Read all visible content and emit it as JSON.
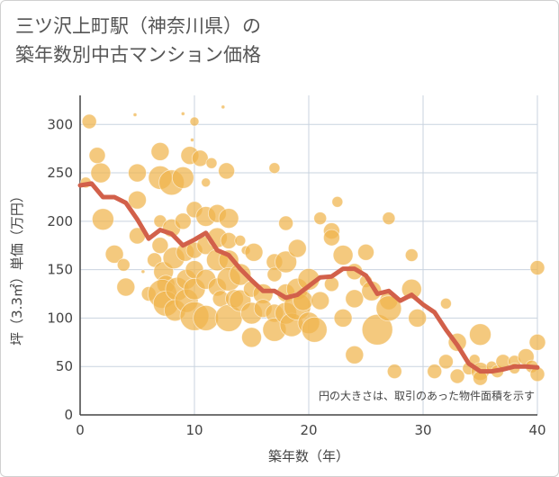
{
  "title_line1": "三ツ沢上町駅（神奈川県）の",
  "title_line2": "築年数別中古マンション価格",
  "note": "円の大きさは、取引のあった物件面積を示す",
  "colors": {
    "bubble": "#f0b44c",
    "line": "#d2604a",
    "grid": "#c9d3df",
    "axis": "#444444"
  },
  "chart_data": {
    "type": "scatter",
    "xlabel": "築年数（年）",
    "ylabel": "坪（3.3㎡）単価（万円）",
    "xlim": [
      0,
      40
    ],
    "ylim": [
      0,
      330
    ],
    "xticks": [
      0,
      10,
      20,
      30,
      40
    ],
    "yticks": [
      0,
      50,
      100,
      150,
      200,
      250,
      300
    ],
    "line": {
      "x": [
        0,
        1,
        2,
        3,
        4,
        5,
        6,
        7,
        8,
        9,
        10,
        11,
        12,
        13,
        14,
        15,
        16,
        17,
        18,
        19,
        20,
        21,
        22,
        23,
        24,
        25,
        26,
        27,
        28,
        29,
        30,
        31,
        32,
        33,
        34,
        35,
        36,
        37,
        38,
        39,
        40
      ],
      "y": [
        237,
        239,
        225,
        225,
        219,
        202,
        182,
        191,
        187,
        175,
        181,
        188,
        170,
        165,
        151,
        139,
        128,
        128,
        121,
        124,
        133,
        142,
        143,
        151,
        151,
        144,
        125,
        128,
        118,
        124,
        114,
        106,
        88,
        72,
        53,
        45,
        45,
        47,
        50,
        50,
        49
      ]
    },
    "bubbles": [
      {
        "x": 0.8,
        "y": 303,
        "r": 8
      },
      {
        "x": 1.5,
        "y": 268,
        "r": 9
      },
      {
        "x": 1.8,
        "y": 250,
        "r": 11
      },
      {
        "x": 0.5,
        "y": 240,
        "r": 6
      },
      {
        "x": 2,
        "y": 202,
        "r": 12
      },
      {
        "x": 3,
        "y": 166,
        "r": 10
      },
      {
        "x": 3.8,
        "y": 155,
        "r": 7
      },
      {
        "x": 4,
        "y": 132,
        "r": 10
      },
      {
        "x": 5,
        "y": 250,
        "r": 10
      },
      {
        "x": 5,
        "y": 222,
        "r": 10
      },
      {
        "x": 5,
        "y": 185,
        "r": 9
      },
      {
        "x": 4.8,
        "y": 310,
        "r": 2
      },
      {
        "x": 5.5,
        "y": 148,
        "r": 2
      },
      {
        "x": 6,
        "y": 125,
        "r": 8
      },
      {
        "x": 6.5,
        "y": 160,
        "r": 8
      },
      {
        "x": 7,
        "y": 272,
        "r": 10
      },
      {
        "x": 7,
        "y": 245,
        "r": 13
      },
      {
        "x": 7,
        "y": 200,
        "r": 7
      },
      {
        "x": 7,
        "y": 175,
        "r": 9
      },
      {
        "x": 7.3,
        "y": 148,
        "r": 11
      },
      {
        "x": 7.5,
        "y": 135,
        "r": 10
      },
      {
        "x": 7.2,
        "y": 125,
        "r": 16
      },
      {
        "x": 7.5,
        "y": 115,
        "r": 14
      },
      {
        "x": 8,
        "y": 240,
        "r": 14
      },
      {
        "x": 8,
        "y": 193,
        "r": 10
      },
      {
        "x": 8.2,
        "y": 162,
        "r": 12
      },
      {
        "x": 8.5,
        "y": 130,
        "r": 13
      },
      {
        "x": 8.3,
        "y": 108,
        "r": 12
      },
      {
        "x": 9,
        "y": 245,
        "r": 12
      },
      {
        "x": 9,
        "y": 200,
        "r": 9
      },
      {
        "x": 9.2,
        "y": 168,
        "r": 10
      },
      {
        "x": 9.3,
        "y": 140,
        "r": 11
      },
      {
        "x": 9.3,
        "y": 118,
        "r": 13
      },
      {
        "x": 9,
        "y": 311,
        "r": 2
      },
      {
        "x": 9.6,
        "y": 268,
        "r": 10
      },
      {
        "x": 9.8,
        "y": 284,
        "r": 2
      },
      {
        "x": 10,
        "y": 303,
        "r": 5
      },
      {
        "x": 10,
        "y": 212,
        "r": 9
      },
      {
        "x": 10,
        "y": 170,
        "r": 9
      },
      {
        "x": 10,
        "y": 150,
        "r": 10
      },
      {
        "x": 10,
        "y": 130,
        "r": 12
      },
      {
        "x": 10,
        "y": 102,
        "r": 16
      },
      {
        "x": 10.5,
        "y": 265,
        "r": 9
      },
      {
        "x": 11,
        "y": 240,
        "r": 5
      },
      {
        "x": 11,
        "y": 205,
        "r": 11
      },
      {
        "x": 11,
        "y": 175,
        "r": 10
      },
      {
        "x": 11,
        "y": 140,
        "r": 11
      },
      {
        "x": 11,
        "y": 100,
        "r": 14
      },
      {
        "x": 11.5,
        "y": 260,
        "r": 6
      },
      {
        "x": 12,
        "y": 208,
        "r": 10
      },
      {
        "x": 12,
        "y": 183,
        "r": 11
      },
      {
        "x": 12,
        "y": 160,
        "r": 12
      },
      {
        "x": 12,
        "y": 132,
        "r": 10
      },
      {
        "x": 12.3,
        "y": 120,
        "r": 9
      },
      {
        "x": 12.5,
        "y": 318,
        "r": 2
      },
      {
        "x": 12.8,
        "y": 252,
        "r": 9
      },
      {
        "x": 13,
        "y": 203,
        "r": 11
      },
      {
        "x": 13,
        "y": 180,
        "r": 9
      },
      {
        "x": 13,
        "y": 160,
        "r": 11
      },
      {
        "x": 13,
        "y": 140,
        "r": 13
      },
      {
        "x": 13,
        "y": 100,
        "r": 15
      },
      {
        "x": 13.5,
        "y": 120,
        "r": 10
      },
      {
        "x": 14,
        "y": 180,
        "r": 6
      },
      {
        "x": 14,
        "y": 145,
        "r": 12
      },
      {
        "x": 14,
        "y": 118,
        "r": 12
      },
      {
        "x": 14.5,
        "y": 170,
        "r": 5
      },
      {
        "x": 15,
        "y": 130,
        "r": 9
      },
      {
        "x": 15,
        "y": 105,
        "r": 12
      },
      {
        "x": 15,
        "y": 80,
        "r": 11
      },
      {
        "x": 15.2,
        "y": 168,
        "r": 10
      },
      {
        "x": 16,
        "y": 125,
        "r": 11
      },
      {
        "x": 16,
        "y": 110,
        "r": 10
      },
      {
        "x": 17,
        "y": 255,
        "r": 6
      },
      {
        "x": 17,
        "y": 158,
        "r": 9
      },
      {
        "x": 17,
        "y": 145,
        "r": 8
      },
      {
        "x": 17,
        "y": 105,
        "r": 10
      },
      {
        "x": 17,
        "y": 88,
        "r": 13
      },
      {
        "x": 18,
        "y": 198,
        "r": 8
      },
      {
        "x": 18,
        "y": 158,
        "r": 12
      },
      {
        "x": 18,
        "y": 126,
        "r": 10
      },
      {
        "x": 18,
        "y": 105,
        "r": 12
      },
      {
        "x": 18.5,
        "y": 93,
        "r": 13
      },
      {
        "x": 19,
        "y": 172,
        "r": 10
      },
      {
        "x": 19,
        "y": 130,
        "r": 12
      },
      {
        "x": 19,
        "y": 112,
        "r": 15
      },
      {
        "x": 19.5,
        "y": 118,
        "r": 11
      },
      {
        "x": 20,
        "y": 140,
        "r": 12
      },
      {
        "x": 20,
        "y": 95,
        "r": 12
      },
      {
        "x": 20.5,
        "y": 88,
        "r": 14
      },
      {
        "x": 21,
        "y": 203,
        "r": 7
      },
      {
        "x": 21,
        "y": 118,
        "r": 10
      },
      {
        "x": 22,
        "y": 190,
        "r": 9
      },
      {
        "x": 22,
        "y": 183,
        "r": 9
      },
      {
        "x": 22,
        "y": 135,
        "r": 8
      },
      {
        "x": 22.5,
        "y": 220,
        "r": 6
      },
      {
        "x": 23,
        "y": 165,
        "r": 11
      },
      {
        "x": 23,
        "y": 100,
        "r": 10
      },
      {
        "x": 24,
        "y": 148,
        "r": 9
      },
      {
        "x": 24,
        "y": 120,
        "r": 10
      },
      {
        "x": 24,
        "y": 62,
        "r": 10
      },
      {
        "x": 25,
        "y": 168,
        "r": 9
      },
      {
        "x": 25,
        "y": 138,
        "r": 7
      },
      {
        "x": 25.5,
        "y": 128,
        "r": 11
      },
      {
        "x": 26,
        "y": 88,
        "r": 17
      },
      {
        "x": 27,
        "y": 203,
        "r": 7
      },
      {
        "x": 27,
        "y": 118,
        "r": 10
      },
      {
        "x": 27,
        "y": 110,
        "r": 14
      },
      {
        "x": 27.5,
        "y": 45,
        "r": 8
      },
      {
        "x": 29,
        "y": 165,
        "r": 7
      },
      {
        "x": 29,
        "y": 130,
        "r": 11
      },
      {
        "x": 29.5,
        "y": 100,
        "r": 10
      },
      {
        "x": 31,
        "y": 45,
        "r": 8
      },
      {
        "x": 32,
        "y": 115,
        "r": 6
      },
      {
        "x": 32,
        "y": 55,
        "r": 8
      },
      {
        "x": 33,
        "y": 75,
        "r": 10
      },
      {
        "x": 33,
        "y": 40,
        "r": 8
      },
      {
        "x": 34,
        "y": 48,
        "r": 7
      },
      {
        "x": 34.5,
        "y": 57,
        "r": 6
      },
      {
        "x": 35,
        "y": 83,
        "r": 12
      },
      {
        "x": 35,
        "y": 45,
        "r": 10
      },
      {
        "x": 35,
        "y": 38,
        "r": 8
      },
      {
        "x": 36,
        "y": 50,
        "r": 6
      },
      {
        "x": 36.5,
        "y": 45,
        "r": 7
      },
      {
        "x": 37,
        "y": 55,
        "r": 8
      },
      {
        "x": 38,
        "y": 55,
        "r": 7
      },
      {
        "x": 38,
        "y": 48,
        "r": 6
      },
      {
        "x": 39,
        "y": 60,
        "r": 9
      },
      {
        "x": 39.5,
        "y": 50,
        "r": 7
      },
      {
        "x": 40,
        "y": 152,
        "r": 8
      },
      {
        "x": 40,
        "y": 75,
        "r": 9
      },
      {
        "x": 40,
        "y": 42,
        "r": 8
      }
    ]
  }
}
